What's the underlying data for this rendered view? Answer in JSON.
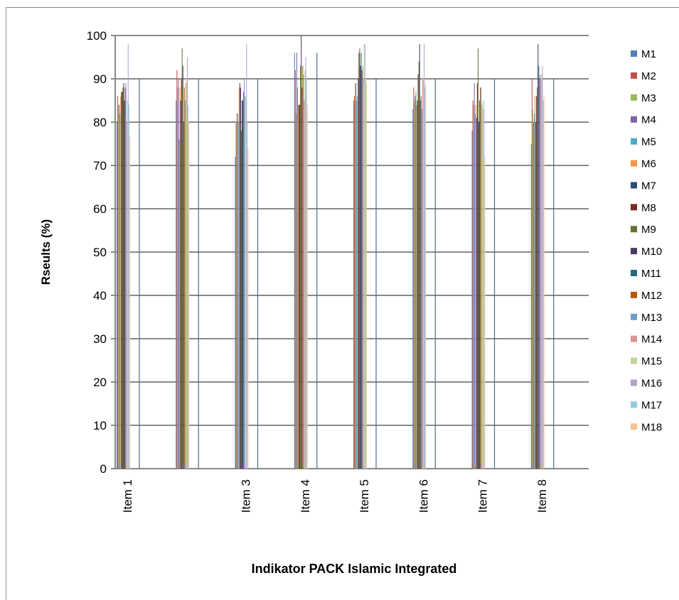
{
  "chart_data": {
    "type": "bar",
    "title": "",
    "xlabel": "Indikator  PACK Islamic Integrated",
    "ylabel": "Rseults (%)",
    "ylim": [
      0,
      100
    ],
    "yticks": [
      "0",
      "10",
      "20",
      "30",
      "40",
      "50",
      "60",
      "70",
      "80",
      "90",
      "100"
    ],
    "grid": true,
    "legend_position": "right",
    "categories": [
      "Item 1",
      "",
      "Item 3",
      "Item 4",
      "Item 5",
      "Item 6",
      "Item 7",
      "Item 8"
    ],
    "series": [
      {
        "name": "M1",
        "color": "#4f81bd",
        "values": [
          80,
          85,
          72,
          96,
          85,
          83,
          78,
          75
        ]
      },
      {
        "name": "M2",
        "color": "#c0504d",
        "values": [
          86,
          92,
          80,
          92,
          86,
          88,
          85,
          90
        ]
      },
      {
        "name": "M3",
        "color": "#9bbb59",
        "values": [
          84,
          88,
          82,
          82,
          89,
          85,
          84,
          83
        ]
      },
      {
        "name": "M4",
        "color": "#8064a2",
        "values": [
          84,
          90,
          82,
          96,
          89,
          86,
          89,
          80
        ]
      },
      {
        "name": "M5",
        "color": "#4bacc6",
        "values": [
          82,
          76,
          80,
          88,
          85,
          87,
          82,
          82
        ]
      },
      {
        "name": "M6",
        "color": "#f79646",
        "values": [
          86,
          88,
          88,
          84,
          86,
          84,
          84,
          86
        ]
      },
      {
        "name": "M7",
        "color": "#2c4d75",
        "values": [
          87,
          85,
          89,
          84,
          90,
          85,
          81,
          80
        ]
      },
      {
        "name": "M8",
        "color": "#772c2a",
        "values": [
          87,
          90,
          88,
          84,
          96,
          91,
          89,
          86
        ]
      },
      {
        "name": "M9",
        "color": "#5f7530",
        "values": [
          88,
          97,
          78,
          93,
          97,
          94,
          97,
          88
        ]
      },
      {
        "name": "M10",
        "color": "#4d3b62",
        "values": [
          89,
          93,
          85,
          100,
          93,
          98,
          80,
          98
        ]
      },
      {
        "name": "M11",
        "color": "#276a7c",
        "values": [
          85,
          80,
          85,
          88,
          96,
          85,
          85,
          93
        ]
      },
      {
        "name": "M12",
        "color": "#b65708",
        "values": [
          88,
          88,
          87,
          93,
          92,
          86,
          88,
          90
        ]
      },
      {
        "name": "M13",
        "color": "#729aca",
        "values": [
          89,
          85,
          90,
          91,
          93,
          83,
          88,
          91
        ]
      },
      {
        "name": "M14",
        "color": "#d99694",
        "values": [
          80,
          89,
          86,
          85,
          90,
          90,
          84,
          90
        ]
      },
      {
        "name": "M15",
        "color": "#c3d69b",
        "values": [
          85,
          90,
          86,
          92,
          98,
          90,
          85,
          91
        ]
      },
      {
        "name": "M16",
        "color": "#b3a2c7",
        "values": [
          98,
          95,
          98,
          95,
          98,
          98,
          83,
          93
        ]
      },
      {
        "name": "M17",
        "color": "#93cddd",
        "values": [
          84,
          84,
          80,
          90,
          90,
          88,
          85,
          85
        ]
      },
      {
        "name": "M18",
        "color": "#fac090",
        "values": [
          77,
          80,
          74,
          84,
          89,
          89,
          72,
          86
        ]
      }
    ]
  }
}
